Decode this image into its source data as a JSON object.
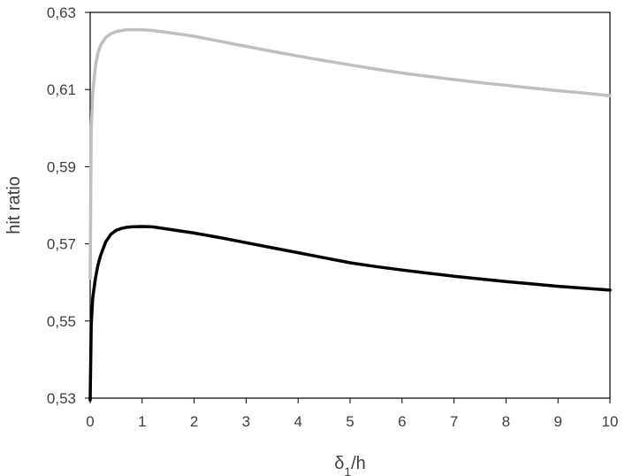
{
  "chart_data": {
    "type": "line",
    "title": "",
    "xlabel": {
      "base": "δ",
      "sub": "1",
      "rest": "/h"
    },
    "ylabel": "hit ratio",
    "xlim": [
      0,
      10
    ],
    "ylim": [
      0.53,
      0.63
    ],
    "x_ticks": [
      0,
      1,
      2,
      3,
      4,
      5,
      6,
      7,
      8,
      9,
      10
    ],
    "x_tick_labels": [
      "0",
      "1",
      "2",
      "3",
      "4",
      "5",
      "6",
      "7",
      "8",
      "9",
      "10"
    ],
    "y_ticks": [
      0.53,
      0.55,
      0.57,
      0.59,
      0.61,
      0.63
    ],
    "y_tick_labels": [
      "0,53",
      "0,55",
      "0,57",
      "0,59",
      "0,61",
      "0,63"
    ],
    "grid": false,
    "legend": "none",
    "series": [
      {
        "color": "#bfbfbf",
        "x": [
          0,
          0.02,
          0.05,
          0.1,
          0.15,
          0.2,
          0.3,
          0.4,
          0.5,
          0.6,
          0.7,
          0.8,
          1.0,
          1.2,
          1.5,
          2,
          2.5,
          3,
          3.5,
          4,
          4.5,
          5,
          5.5,
          6,
          6.5,
          7,
          7.5,
          8,
          8.5,
          9,
          9.5,
          10
        ],
        "y": [
          0.561,
          0.6,
          0.609,
          0.616,
          0.6195,
          0.6215,
          0.6235,
          0.6245,
          0.625,
          0.6253,
          0.6255,
          0.6255,
          0.6255,
          0.6253,
          0.6248,
          0.6238,
          0.6225,
          0.6212,
          0.6199,
          0.6187,
          0.6175,
          0.6164,
          0.6153,
          0.6143,
          0.6134,
          0.6126,
          0.6118,
          0.6111,
          0.6104,
          0.6097,
          0.6091,
          0.6084
        ]
      },
      {
        "color": "#000000",
        "x": [
          0,
          0.02,
          0.05,
          0.1,
          0.15,
          0.2,
          0.3,
          0.4,
          0.5,
          0.6,
          0.7,
          0.8,
          1.0,
          1.2,
          1.5,
          2,
          2.5,
          3,
          3.5,
          4,
          4.5,
          5,
          5.5,
          6,
          6.5,
          7,
          7.5,
          8,
          8.5,
          9,
          9.5,
          10
        ],
        "y": [
          0.5295,
          0.549,
          0.556,
          0.561,
          0.5645,
          0.567,
          0.5705,
          0.5725,
          0.5735,
          0.574,
          0.5743,
          0.5744,
          0.5745,
          0.5744,
          0.5738,
          0.5728,
          0.5716,
          0.5703,
          0.569,
          0.5677,
          0.5664,
          0.5651,
          0.5641,
          0.5632,
          0.5624,
          0.5616,
          0.5609,
          0.5602,
          0.5596,
          0.559,
          0.5585,
          0.558
        ]
      }
    ]
  }
}
